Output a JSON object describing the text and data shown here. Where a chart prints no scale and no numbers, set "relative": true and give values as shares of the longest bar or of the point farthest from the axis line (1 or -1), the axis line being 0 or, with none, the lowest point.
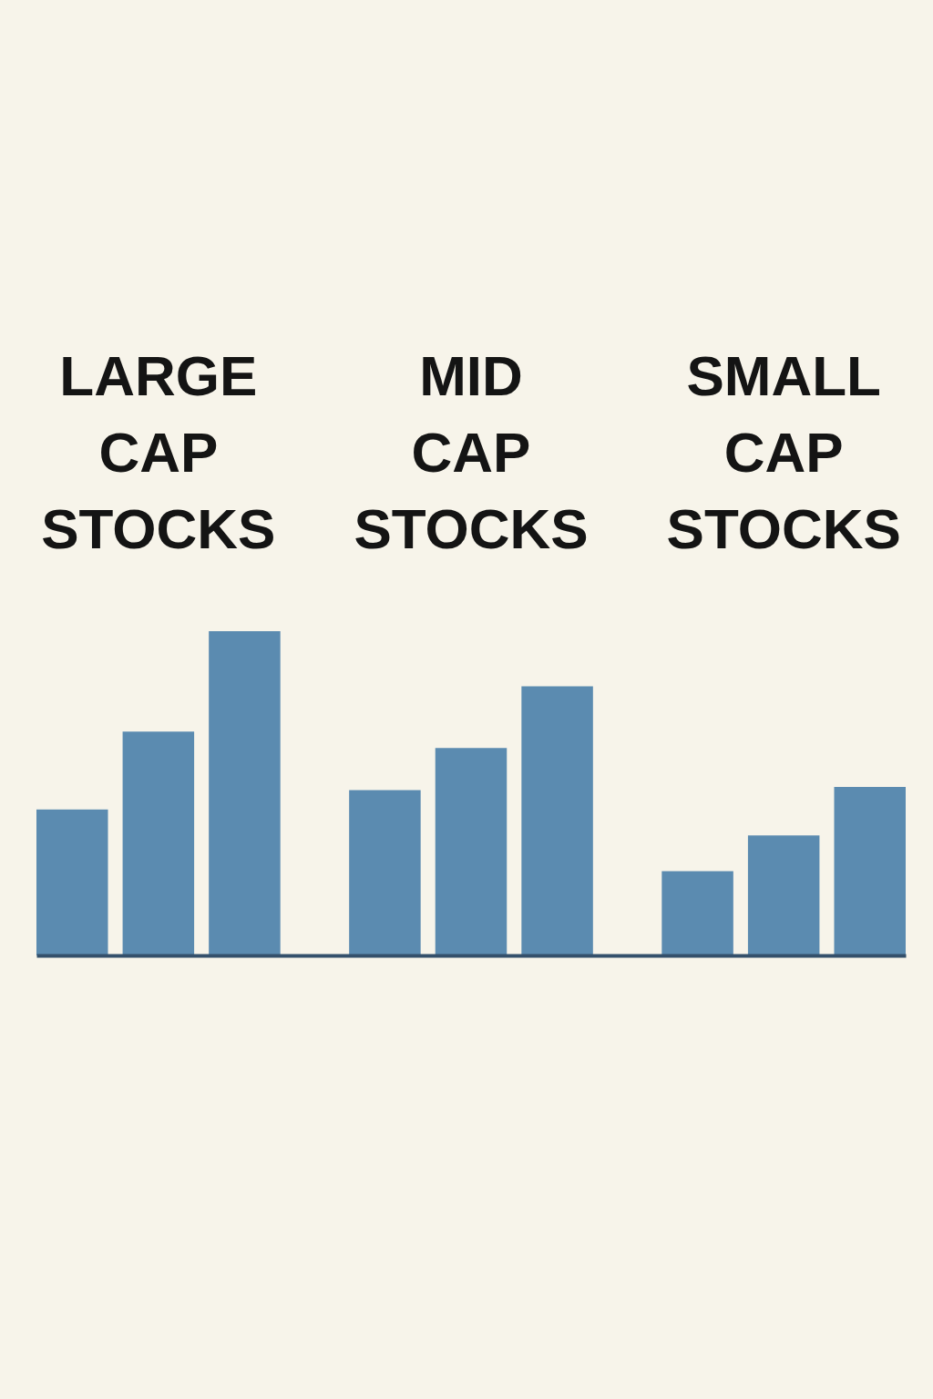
{
  "chart_data": {
    "type": "bar",
    "relative": true,
    "legend": false,
    "categories": [
      "LARGE CAP STOCKS",
      "MID CAP STOCKS",
      "SMALL CAP STOCKS"
    ],
    "series": [
      {
        "color": "#5b8bb0",
        "values": [
          0.45,
          0.51,
          0.26
        ]
      },
      {
        "color": "#5b8bb0",
        "values": [
          0.69,
          0.64,
          0.37
        ]
      },
      {
        "color": "#5b8bb0",
        "values": [
          1,
          0.83,
          0.52
        ]
      }
    ]
  }
}
